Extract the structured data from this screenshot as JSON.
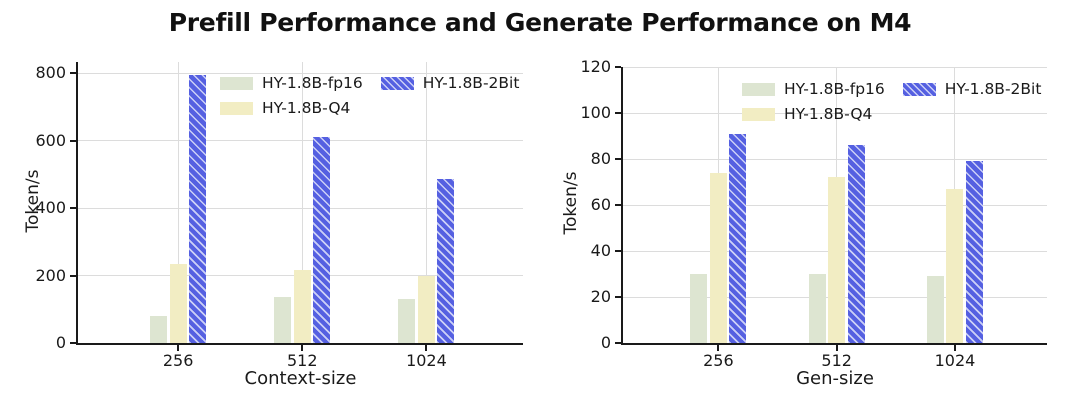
{
  "title": "Prefill Performance and Generate Performance on M4",
  "colors": {
    "fp16": "#dde5d1",
    "q4": "#f2edc3",
    "bit2": "#5560e1",
    "grid": "#dcdcdc",
    "spine": "#1a1a1a",
    "text": "#1a1a1a",
    "background": "#ffffff"
  },
  "chart_data": [
    {
      "type": "bar",
      "panel": "prefill",
      "categories": [
        "256",
        "512",
        "1024"
      ],
      "series": [
        {
          "name": "HY-1.8B-fp16",
          "color": "#dde5d1",
          "hatch": false,
          "values": [
            80,
            135,
            130
          ]
        },
        {
          "name": "HY-1.8B-Q4",
          "color": "#f2edc3",
          "hatch": false,
          "values": [
            235,
            215,
            200
          ]
        },
        {
          "name": "HY-1.8B-2Bit",
          "color": "#5560e1",
          "hatch": true,
          "values": [
            793,
            610,
            485
          ]
        }
      ],
      "xlabel": "Context-size",
      "ylabel": "Token/s",
      "ylim": [
        0,
        833
      ],
      "yticks": [
        0,
        200,
        400,
        600,
        800
      ],
      "grid": true,
      "legend_position": "upper center"
    },
    {
      "type": "bar",
      "panel": "generate",
      "categories": [
        "256",
        "512",
        "1024"
      ],
      "series": [
        {
          "name": "HY-1.8B-fp16",
          "color": "#dde5d1",
          "hatch": false,
          "values": [
            30,
            30,
            29
          ]
        },
        {
          "name": "HY-1.8B-Q4",
          "color": "#f2edc3",
          "hatch": false,
          "values": [
            74,
            72,
            67
          ]
        },
        {
          "name": "HY-1.8B-2Bit",
          "color": "#5560e1",
          "hatch": true,
          "values": [
            91,
            86,
            79
          ]
        }
      ],
      "xlabel": "Gen-size",
      "ylabel": "Token/s",
      "ylim": [
        0,
        120
      ],
      "yticks": [
        0,
        20,
        40,
        60,
        80,
        100,
        120
      ],
      "grid": true,
      "legend_position": "upper center"
    }
  ]
}
